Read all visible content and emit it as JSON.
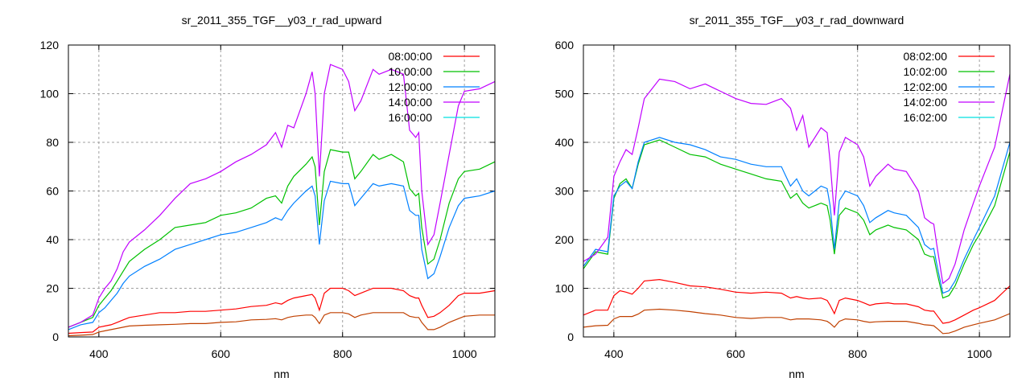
{
  "chart_data": [
    {
      "type": "line",
      "title": "sr_2011_355_TGF__y03_r_rad_upward",
      "xlabel": "nm",
      "ylabel": "",
      "xlim": [
        350,
        1050
      ],
      "ylim": [
        0,
        120
      ],
      "xticks": [
        400,
        600,
        800,
        1000
      ],
      "yticks": [
        0,
        20,
        40,
        60,
        80,
        100,
        120
      ],
      "grid": true,
      "legend_position": "top-right",
      "x": [
        350,
        370,
        390,
        400,
        410,
        420,
        430,
        440,
        450,
        475,
        500,
        525,
        550,
        575,
        600,
        625,
        650,
        675,
        690,
        700,
        710,
        720,
        740,
        750,
        755,
        762,
        770,
        780,
        800,
        810,
        820,
        830,
        850,
        860,
        880,
        900,
        910,
        920,
        925,
        930,
        940,
        950,
        960,
        975,
        990,
        1000,
        1025,
        1050
      ],
      "series": [
        {
          "name": "08:00:00",
          "color": "#ff0000",
          "legend_color": "#ff0000",
          "values": [
            1.5,
            1.8,
            2,
            4,
            4.5,
            5,
            6,
            7,
            8,
            9,
            10,
            10,
            10.5,
            10.5,
            11,
            11.5,
            12.5,
            13,
            14,
            13.5,
            15,
            16,
            17,
            17.5,
            16,
            11,
            18,
            20,
            20,
            19,
            17,
            18,
            20,
            20,
            20,
            19,
            17,
            16,
            16,
            13,
            8,
            8.5,
            10,
            13,
            17,
            18,
            18,
            19
          ]
        },
        {
          "name": "10:00:00",
          "color": "#00c000",
          "legend_color": "#00c000",
          "values": [
            4,
            6,
            8,
            13,
            16,
            19,
            23,
            27,
            31,
            36,
            40,
            45,
            46,
            47,
            50,
            51,
            53,
            57,
            58,
            55,
            62,
            66,
            71,
            74,
            70,
            46,
            68,
            77,
            76,
            76,
            65,
            68,
            75,
            73,
            75,
            72,
            61,
            58,
            59,
            45,
            30,
            32,
            40,
            55,
            65,
            68,
            69,
            72
          ]
        },
        {
          "name": "12:00:00",
          "color": "#0080ff",
          "legend_color": "#0080ff",
          "values": [
            3,
            5,
            6,
            10,
            12,
            15,
            18,
            22,
            25,
            29,
            32,
            36,
            38,
            40,
            42,
            43,
            45,
            47,
            49,
            48,
            52,
            55,
            60,
            62,
            58,
            38,
            56,
            64,
            63,
            63,
            54,
            57,
            63,
            62,
            63,
            62,
            52,
            50,
            50,
            36,
            24,
            26,
            33,
            45,
            54,
            57,
            58,
            60
          ]
        },
        {
          "name": "14:00:00",
          "color": "#c000ff",
          "legend_color": "#c000ff",
          "values": [
            4,
            6,
            9,
            16,
            20,
            23,
            28,
            35,
            39,
            44,
            50,
            57,
            63,
            65,
            68,
            72,
            75,
            79,
            84,
            78,
            87,
            86,
            100,
            109,
            100,
            66,
            100,
            112,
            110,
            105,
            93,
            97,
            110,
            108,
            110,
            108,
            85,
            82,
            84,
            60,
            38,
            42,
            55,
            75,
            95,
            101,
            102,
            105
          ]
        },
        {
          "name": "16:00:00",
          "color": "#c04000",
          "legend_color": "#00e0e0",
          "values": [
            0.5,
            0.7,
            1,
            2,
            2.5,
            3,
            3.5,
            4,
            4.5,
            4.8,
            5,
            5.2,
            5.5,
            5.5,
            6,
            6.2,
            7,
            7.2,
            7.5,
            7,
            8,
            8.5,
            9,
            9,
            8,
            5.5,
            9,
            10,
            10,
            9.5,
            8,
            9,
            10,
            10,
            10,
            10,
            8.5,
            8,
            8,
            6,
            3,
            3,
            4,
            6,
            7.5,
            8.5,
            9,
            9
          ]
        }
      ]
    },
    {
      "type": "line",
      "title": "sr_2011_355_TGF__y03_r_rad_downward",
      "xlabel": "nm",
      "ylabel": "",
      "xlim": [
        350,
        1050
      ],
      "ylim": [
        0,
        600
      ],
      "xticks": [
        400,
        600,
        800,
        1000
      ],
      "yticks": [
        0,
        100,
        200,
        300,
        400,
        500,
        600
      ],
      "grid": true,
      "legend_position": "top-right",
      "x": [
        350,
        370,
        390,
        400,
        410,
        420,
        430,
        440,
        450,
        475,
        500,
        525,
        550,
        575,
        600,
        625,
        650,
        675,
        690,
        700,
        710,
        720,
        740,
        750,
        755,
        762,
        770,
        780,
        800,
        810,
        820,
        830,
        850,
        860,
        880,
        900,
        910,
        920,
        925,
        930,
        940,
        950,
        960,
        975,
        990,
        1000,
        1025,
        1050
      ],
      "series": [
        {
          "name": "08:02:00",
          "color": "#ff0000",
          "legend_color": "#ff0000",
          "values": [
            45,
            55,
            55,
            85,
            95,
            92,
            88,
            100,
            115,
            118,
            112,
            105,
            103,
            98,
            92,
            90,
            92,
            90,
            80,
            83,
            80,
            78,
            80,
            75,
            65,
            48,
            75,
            80,
            75,
            70,
            65,
            68,
            70,
            68,
            68,
            62,
            55,
            53,
            53,
            45,
            28,
            30,
            35,
            45,
            55,
            60,
            75,
            105
          ]
        },
        {
          "name": "10:02:00",
          "color": "#00c000",
          "legend_color": "#00c000",
          "values": [
            140,
            175,
            170,
            285,
            315,
            325,
            305,
            355,
            395,
            405,
            390,
            375,
            370,
            355,
            345,
            335,
            325,
            320,
            285,
            295,
            275,
            265,
            275,
            270,
            240,
            170,
            250,
            265,
            255,
            240,
            210,
            220,
            230,
            225,
            220,
            200,
            170,
            165,
            165,
            135,
            80,
            85,
            105,
            150,
            190,
            210,
            270,
            380
          ]
        },
        {
          "name": "12:02:00",
          "color": "#0080ff",
          "legend_color": "#0080ff",
          "values": [
            145,
            180,
            175,
            290,
            310,
            320,
            305,
            360,
            400,
            410,
            400,
            395,
            385,
            370,
            365,
            355,
            350,
            350,
            310,
            325,
            300,
            290,
            310,
            305,
            270,
            180,
            280,
            300,
            290,
            270,
            235,
            245,
            260,
            255,
            250,
            225,
            190,
            180,
            182,
            150,
            90,
            95,
            115,
            160,
            200,
            225,
            290,
            400
          ]
        },
        {
          "name": "14:02:00",
          "color": "#c000ff",
          "legend_color": "#c000ff",
          "values": [
            155,
            170,
            205,
            330,
            360,
            385,
            375,
            430,
            490,
            530,
            525,
            510,
            520,
            505,
            490,
            480,
            478,
            490,
            470,
            425,
            455,
            390,
            430,
            420,
            360,
            250,
            380,
            410,
            395,
            370,
            310,
            330,
            355,
            345,
            340,
            300,
            245,
            235,
            232,
            190,
            110,
            120,
            150,
            220,
            275,
            310,
            390,
            540
          ]
        },
        {
          "name": "16:02:00",
          "color": "#c04000",
          "legend_color": "#00e0e0",
          "values": [
            20,
            23,
            24,
            37,
            42,
            42,
            42,
            47,
            55,
            57,
            55,
            52,
            48,
            45,
            40,
            38,
            40,
            40,
            35,
            37,
            37,
            37,
            35,
            32,
            28,
            20,
            32,
            37,
            35,
            32,
            30,
            31,
            32,
            32,
            32,
            28,
            25,
            24,
            23,
            18,
            7,
            8,
            12,
            20,
            25,
            28,
            35,
            48
          ]
        }
      ]
    }
  ]
}
